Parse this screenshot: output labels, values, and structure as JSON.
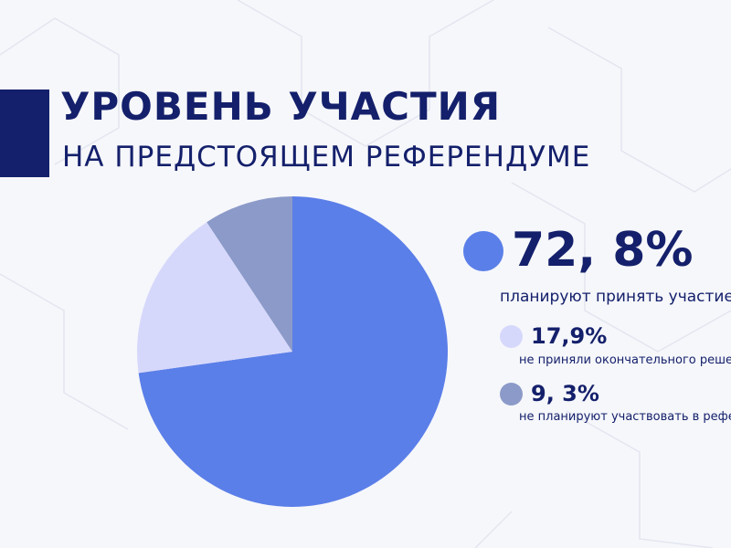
{
  "title": "УРОВЕНЬ УЧАСТИЯ",
  "subtitle": "НА ПРЕДСТОЯЩЕМ РЕФЕРЕНДУМЕ",
  "colors": {
    "navy": "#14206b",
    "blue": "#5b7fe8",
    "lavender": "#d6d8fb",
    "slate": "#8b9ac8"
  },
  "legend": [
    {
      "value_label": "72, 8%",
      "text": "планируют принять участие"
    },
    {
      "value_label": "17,9%",
      "text": "не приняли окончательного решения"
    },
    {
      "value_label": "9, 3%",
      "text": "не планируют участвовать в референдуме"
    }
  ],
  "chart_data": {
    "type": "pie",
    "categories": [
      "планируют принять участие",
      "не приняли окончательного решения",
      "не планируют участвовать в референдуме"
    ],
    "values": [
      72.8,
      17.9,
      9.3
    ],
    "colors": [
      "#5b7fe8",
      "#d6d8fb",
      "#8b9ac8"
    ],
    "title": "УРОВЕНЬ УЧАСТИЯ",
    "subtitle": "НА ПРЕДСТОЯЩЕМ РЕФЕРЕНДУМЕ",
    "legend": "right"
  }
}
